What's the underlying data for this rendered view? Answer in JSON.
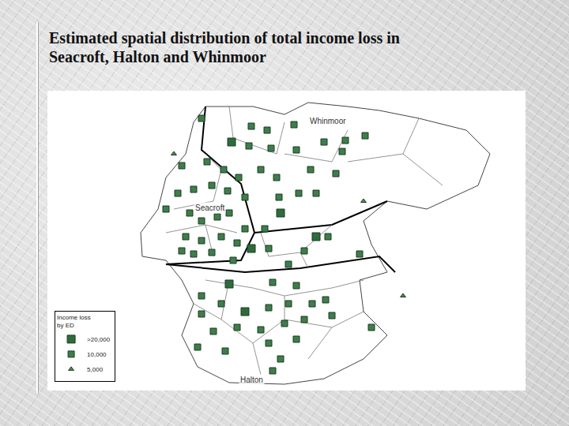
{
  "chart_data": {
    "type": "map",
    "title": "Estimated spatial distribution of total income loss in Seacroft, Halton and Whinmoor",
    "regions": [
      "Whinmoor",
      "Seacroft",
      "Halton"
    ],
    "legend": "lower left",
    "legend_title": [
      "Income loss",
      "by ED"
    ],
    "tick_labels": false,
    "grid": false,
    "xlim": [
      0,
      605
    ],
    "ylim": [
      0,
      380
    ],
    "series": [
      {
        "name": ">20,000",
        "color": "#2f6b3c",
        "marker": "square",
        "x": [
          233,
          295,
          340,
          250,
          230,
          258
        ],
        "y": [
          315,
          225,
          195,
          100,
          135,
          180
        ]
      },
      {
        "name": "10,000",
        "color": "#3f7d4c",
        "marker": "square",
        "x": [
          195,
          258,
          278,
          312,
          255,
          283,
          315,
          350,
          377,
          402,
          373,
          365,
          333,
          290,
          270,
          242,
          223,
          202,
          208,
          228,
          250,
          293,
          318,
          340,
          355,
          395,
          325,
          305,
          170,
          165,
          150,
          185,
          180,
          195,
          215,
          230,
          175,
          195,
          220,
          240,
          208,
          185,
          170,
          235,
          280,
          275,
          250,
          195,
          285,
          315,
          220,
          280,
          305,
          335,
          195,
          210,
          240,
          270,
          300,
          325,
          352,
          360,
          225,
          280,
          295,
          315,
          190,
          285,
          410
        ],
        "y": [
          345,
          335,
          330,
          337,
          310,
          307,
          305,
          315,
          317,
          323,
          303,
          275,
          280,
          270,
          280,
          270,
          280,
          290,
          260,
          253,
          245,
          245,
          250,
          250,
          195,
          173,
          177,
          160,
          285,
          250,
          230,
          255,
          225,
          215,
          220,
          225,
          195,
          190,
          195,
          187,
          175,
          173,
          177,
          165,
          180,
          205,
          205,
          120,
          137,
          133,
          110,
          105,
          110,
          110,
          97,
          75,
          80,
          77,
          85,
          90,
          115,
          95,
          50,
          60,
          40,
          65,
          55,
          25,
          80
        ]
      },
      {
        "name": "5,000",
        "color": "#4d8a5a",
        "marker": "triangle-up",
        "x": [
          160,
          400,
          450
        ],
        "y": [
          300,
          240,
          120
        ]
      }
    ]
  }
}
